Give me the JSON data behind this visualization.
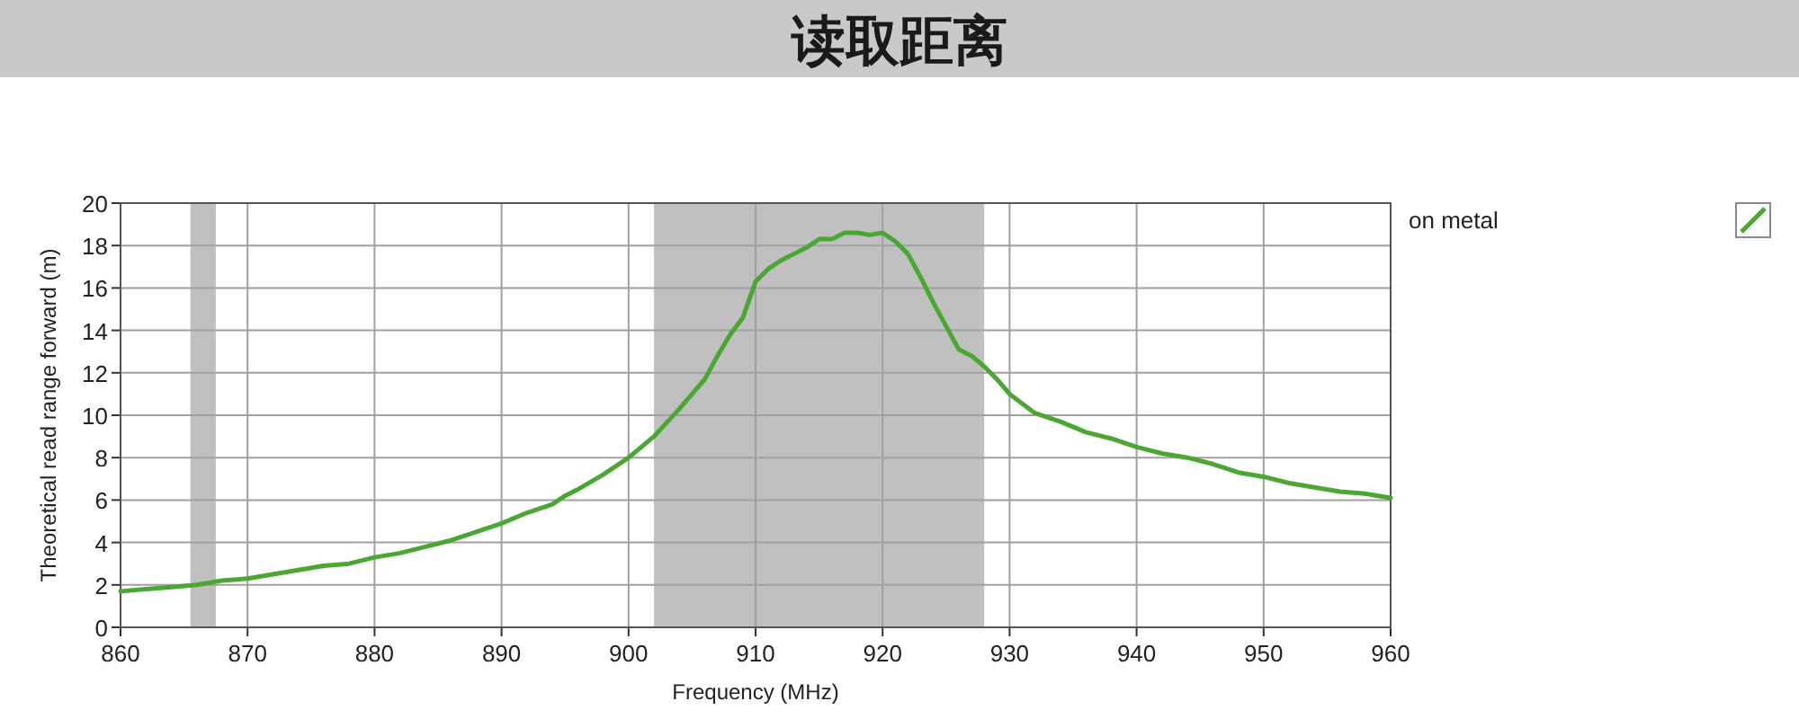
{
  "chart_data": {
    "type": "line",
    "title": "读取距离",
    "xlabel": "Frequency (MHz)",
    "ylabel": "Theoretical read range forward (m)",
    "x": [
      860,
      862,
      864,
      866,
      868,
      870,
      872,
      874,
      876,
      878,
      880,
      882,
      884,
      886,
      888,
      890,
      892,
      894,
      895,
      896,
      898,
      900,
      902,
      904,
      906,
      907,
      908,
      909,
      910,
      911,
      912,
      913,
      914,
      915,
      916,
      917,
      918,
      919,
      920,
      921,
      922,
      923,
      924,
      925,
      926,
      927,
      928,
      929,
      930,
      932,
      934,
      936,
      938,
      940,
      942,
      944,
      946,
      948,
      950,
      952,
      954,
      956,
      958,
      960
    ],
    "series": [
      {
        "name": "on metal",
        "color": "#4aa832",
        "values": [
          1.7,
          1.8,
          1.9,
          2.0,
          2.2,
          2.3,
          2.5,
          2.7,
          2.9,
          3.0,
          3.3,
          3.5,
          3.8,
          4.1,
          4.5,
          4.9,
          5.4,
          5.8,
          6.2,
          6.5,
          7.2,
          8.0,
          9.0,
          10.3,
          11.7,
          12.8,
          13.8,
          14.6,
          16.3,
          16.9,
          17.3,
          17.6,
          17.9,
          18.3,
          18.3,
          18.6,
          18.6,
          18.5,
          18.6,
          18.2,
          17.6,
          16.5,
          15.3,
          14.2,
          13.1,
          12.8,
          12.3,
          11.7,
          11.0,
          10.1,
          9.7,
          9.2,
          8.9,
          8.5,
          8.2,
          8.0,
          7.7,
          7.3,
          7.1,
          6.8,
          6.6,
          6.4,
          6.3,
          6.1
        ]
      }
    ],
    "xlim": [
      860,
      960
    ],
    "ylim": [
      0,
      20
    ],
    "xticks": [
      860,
      870,
      880,
      890,
      900,
      910,
      920,
      930,
      940,
      950,
      960
    ],
    "yticks": [
      0,
      2,
      4,
      6,
      8,
      10,
      12,
      14,
      16,
      18,
      20
    ],
    "bands": [
      {
        "axis": "x",
        "from": 865.5,
        "to": 867.5,
        "color": "#c0c0c0"
      },
      {
        "axis": "x",
        "from": 902,
        "to": 928,
        "color": "#c0c0c0"
      }
    ],
    "grid": true,
    "legend": "top right"
  }
}
